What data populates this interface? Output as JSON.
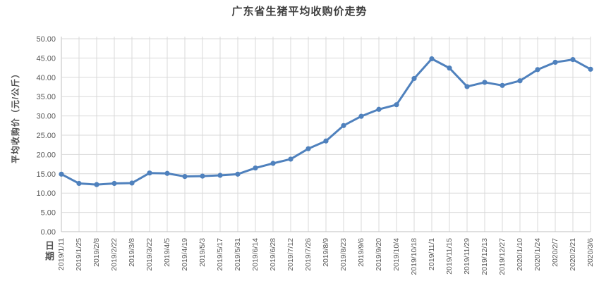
{
  "chart_data": {
    "type": "line",
    "title": "广东省生猪平均收购价走势",
    "xlabel": "日期",
    "ylabel": "平均收购价（元/公斤）",
    "categories": [
      "2019/1/11",
      "2019/1/25",
      "2019/2/8",
      "2019/2/22",
      "2019/3/8",
      "2019/3/22",
      "2019/4/5",
      "2019/4/19",
      "2019/5/3",
      "2019/5/17",
      "2019/5/31",
      "2019/6/14",
      "2019/6/28",
      "2019/7/12",
      "2019/7/26",
      "2019/8/9",
      "2019/8/23",
      "2019/9/6",
      "2019/9/20",
      "2019/10/4",
      "2019/10/18",
      "2019/11/1",
      "2019/11/15",
      "2019/11/29",
      "2019/12/13",
      "2019/12/27",
      "2020/1/10",
      "2020/1/24",
      "2020/2/7",
      "2020/2/21",
      "2020/3/6"
    ],
    "values": [
      14.9,
      12.5,
      12.2,
      12.5,
      12.6,
      15.2,
      15.1,
      14.3,
      14.4,
      14.6,
      14.9,
      16.5,
      17.7,
      18.8,
      21.5,
      23.5,
      27.5,
      29.9,
      31.7,
      32.9,
      39.7,
      44.8,
      42.4,
      37.6,
      38.7,
      37.9,
      39.1,
      42.0,
      43.9,
      44.6,
      42.1
    ],
    "ylim": [
      0,
      50
    ],
    "ytick_step": 5,
    "ytick_decimals": 2,
    "grid": "both",
    "legend": "none",
    "colors": {
      "line": "#4F81BD",
      "marker": "#4F81BD",
      "gridline": "#D9D9D9",
      "axis": "#BFBFBF",
      "title": "#404040",
      "tick_label": "#595959",
      "background": "#FFFFFF"
    }
  }
}
